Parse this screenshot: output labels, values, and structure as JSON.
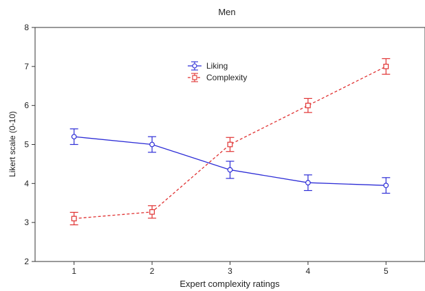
{
  "chart_data": {
    "type": "line",
    "title": "Men",
    "xlabel": "Expert complexity ratings",
    "ylabel": "Likert scale (0-10)",
    "x": [
      1,
      2,
      3,
      4,
      5
    ],
    "xlim": [
      0.5,
      5.5
    ],
    "ylim": [
      2,
      8
    ],
    "x_ticks": [
      "1",
      "2",
      "3",
      "4",
      "5"
    ],
    "y_ticks": [
      "2",
      "3",
      "4",
      "5",
      "6",
      "7",
      "8"
    ],
    "legend_position": "upper-center",
    "grid": false,
    "series": [
      {
        "name": "Liking",
        "color": "#2b2bd6",
        "line_style": "solid",
        "marker": "circle",
        "values": [
          5.2,
          5.0,
          4.35,
          4.02,
          3.95
        ],
        "error": [
          0.2,
          0.2,
          0.22,
          0.2,
          0.2
        ]
      },
      {
        "name": "Complexity",
        "color": "#e03030",
        "line_style": "dashed",
        "marker": "square",
        "values": [
          3.1,
          3.27,
          5.0,
          6.0,
          7.0
        ],
        "error": [
          0.16,
          0.16,
          0.18,
          0.18,
          0.2
        ]
      }
    ]
  }
}
